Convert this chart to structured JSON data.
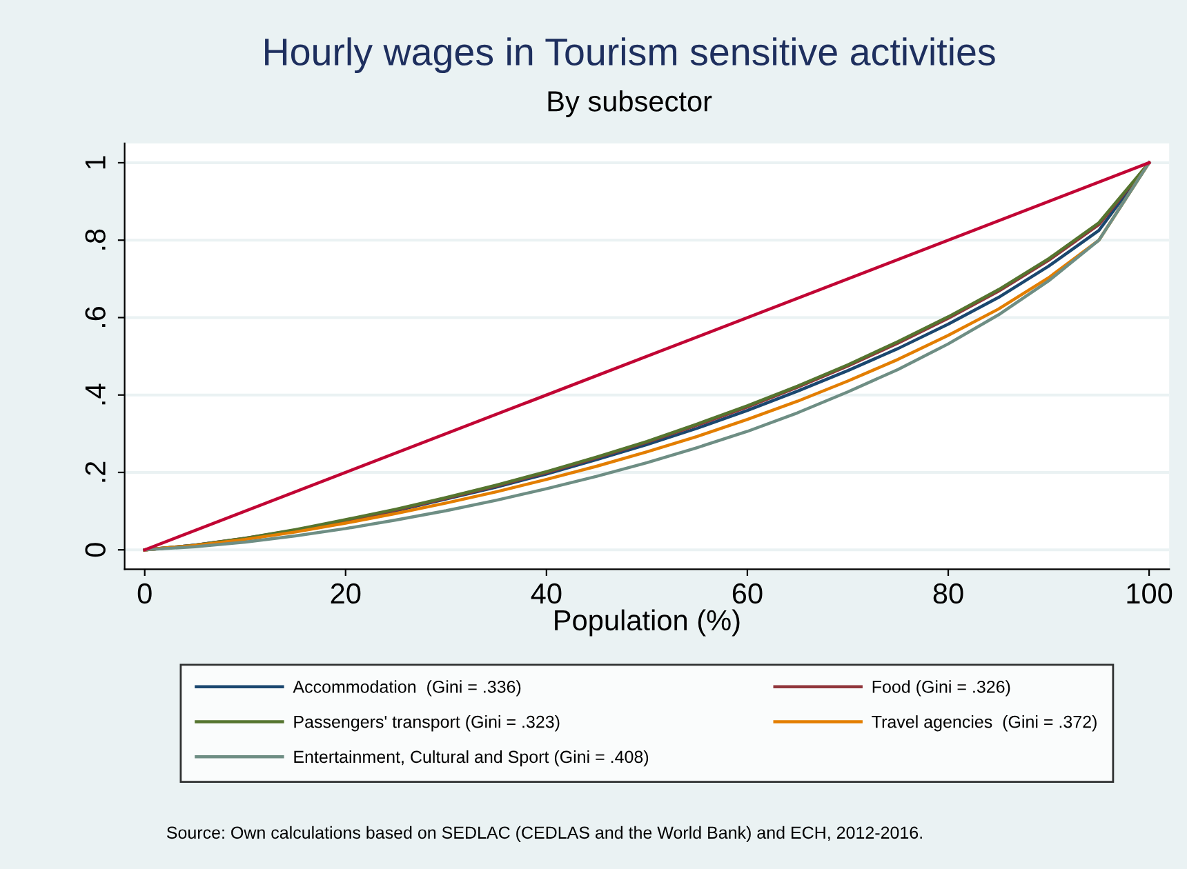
{
  "chart_data": {
    "type": "line",
    "title": "Hourly wages in Tourism sensitive activities",
    "subtitle": "By subsector",
    "xlabel": "Population (%)",
    "x": [
      0,
      5,
      10,
      15,
      20,
      25,
      30,
      35,
      40,
      45,
      50,
      55,
      60,
      65,
      70,
      75,
      80,
      85,
      90,
      95,
      100
    ],
    "series": [
      {
        "name": "Accommodation  (Gini = .336)",
        "color": "#1a476f",
        "values": [
          0,
          0.012,
          0.029,
          0.05,
          0.075,
          0.101,
          0.131,
          0.162,
          0.196,
          0.233,
          0.272,
          0.314,
          0.36,
          0.41,
          0.463,
          0.52,
          0.583,
          0.652,
          0.733,
          0.825,
          1
        ]
      },
      {
        "name": "Food (Gini = .326)",
        "color": "#90353b",
        "values": [
          0,
          0.012,
          0.03,
          0.051,
          0.076,
          0.103,
          0.133,
          0.165,
          0.2,
          0.238,
          0.278,
          0.322,
          0.369,
          0.42,
          0.475,
          0.534,
          0.598,
          0.668,
          0.748,
          0.84,
          1
        ]
      },
      {
        "name": "Passengers' transport (Gini = .323)",
        "color": "#55752f",
        "values": [
          0,
          0.012,
          0.03,
          0.052,
          0.078,
          0.105,
          0.135,
          0.167,
          0.202,
          0.24,
          0.28,
          0.325,
          0.372,
          0.423,
          0.478,
          0.538,
          0.602,
          0.672,
          0.752,
          0.845,
          1
        ]
      },
      {
        "name": "Travel agencies  (Gini = .372)",
        "color": "#e37e00",
        "values": [
          0,
          0.011,
          0.027,
          0.046,
          0.069,
          0.094,
          0.121,
          0.15,
          0.182,
          0.216,
          0.253,
          0.293,
          0.337,
          0.384,
          0.436,
          0.492,
          0.554,
          0.622,
          0.703,
          0.8,
          1
        ]
      },
      {
        "name": "Entertainment, Cultural and Sport (Gini = .408)",
        "color": "#6e8e84",
        "values": [
          0,
          0.008,
          0.02,
          0.036,
          0.055,
          0.077,
          0.101,
          0.128,
          0.158,
          0.19,
          0.225,
          0.264,
          0.306,
          0.354,
          0.408,
          0.466,
          0.532,
          0.607,
          0.695,
          0.8,
          1
        ]
      },
      {
        "color": "#c10534",
        "x": [
          0,
          100
        ],
        "values": [
          0,
          1
        ]
      }
    ],
    "xlim": [
      -2,
      102
    ],
    "ylim": [
      -0.05,
      1.05
    ],
    "xticks": [
      0,
      20,
      40,
      60,
      80,
      100
    ],
    "yticks": [
      {
        "value": 0,
        "label": "0"
      },
      {
        "value": 0.2,
        "label": ".2"
      },
      {
        "value": 0.4,
        "label": ".4"
      },
      {
        "value": 0.6,
        "label": ".6"
      },
      {
        "value": 0.8,
        "label": ".8"
      },
      {
        "value": 1,
        "label": "1"
      }
    ],
    "grid": "y",
    "legend": "bottom",
    "marker": "none",
    "line_style": "solid",
    "annotations": [
      "Source: Own calculations based on SEDLAC (CEDLAS and the World Bank) and ECH, 2012-2016."
    ]
  }
}
